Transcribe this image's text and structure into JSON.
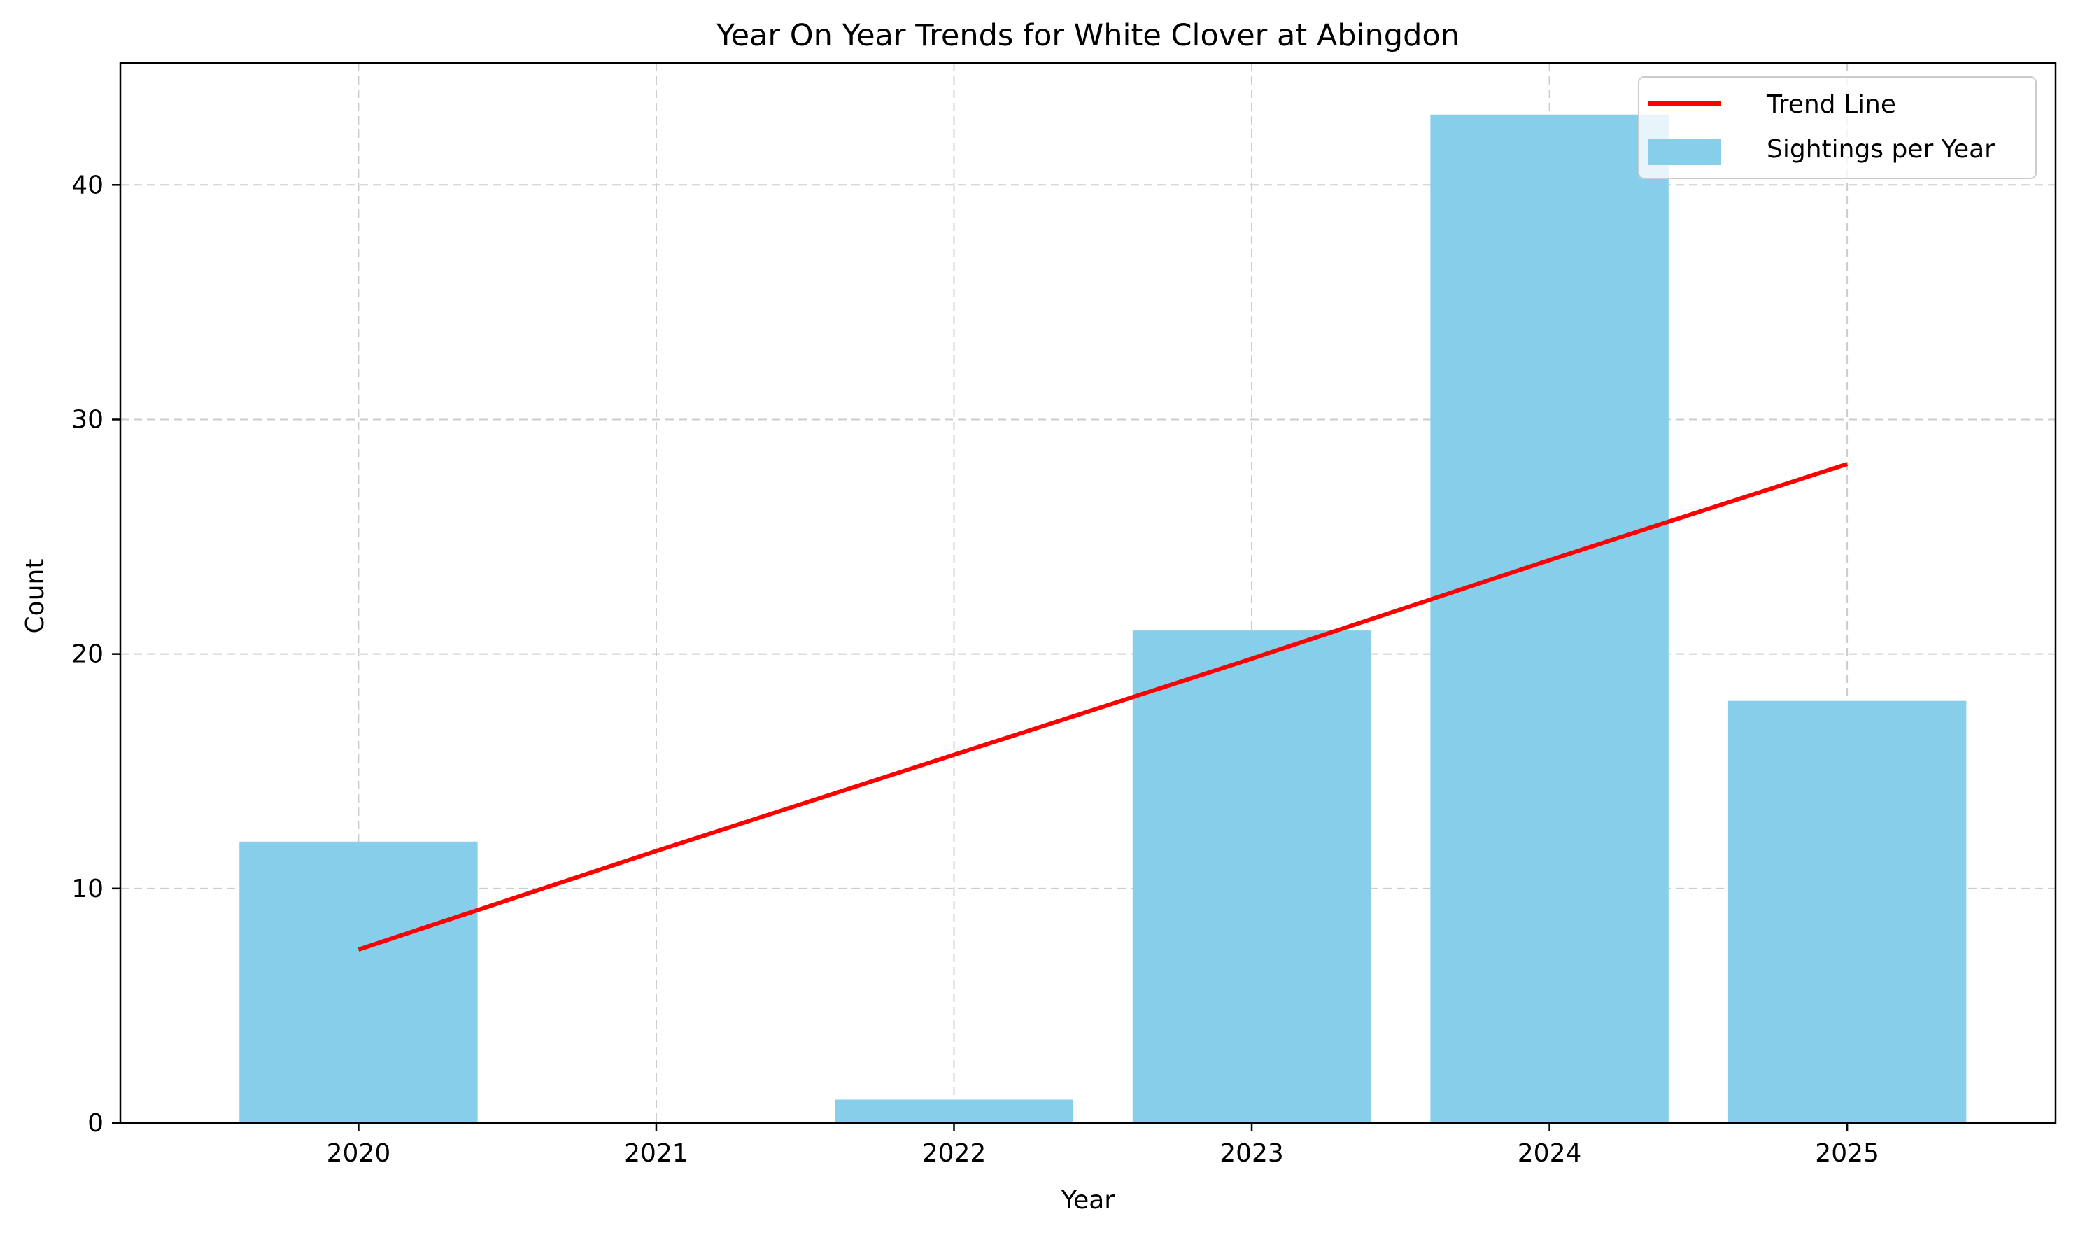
{
  "chart_data": {
    "type": "bar",
    "title": "Year On Year Trends for White Clover at Abingdon",
    "xlabel": "Year",
    "ylabel": "Count",
    "categories": [
      "2020",
      "2021",
      "2022",
      "2023",
      "2024",
      "2025"
    ],
    "series": [
      {
        "name": "Sightings per Year",
        "type": "bar",
        "values": [
          12,
          0,
          1,
          21,
          43,
          18
        ]
      },
      {
        "name": "Trend Line",
        "type": "line",
        "values": [
          7.4,
          11.6,
          15.7,
          19.8,
          24.0,
          28.1
        ]
      }
    ],
    "yticks": [
      0,
      10,
      20,
      30,
      40
    ],
    "ylim": [
      0,
      45.2
    ],
    "grid": true,
    "legend_position": "top-right",
    "colors": {
      "bars": "#87CEEB",
      "trend": "#FF0000",
      "grid": "#cccccc",
      "axis": "#000000"
    }
  }
}
